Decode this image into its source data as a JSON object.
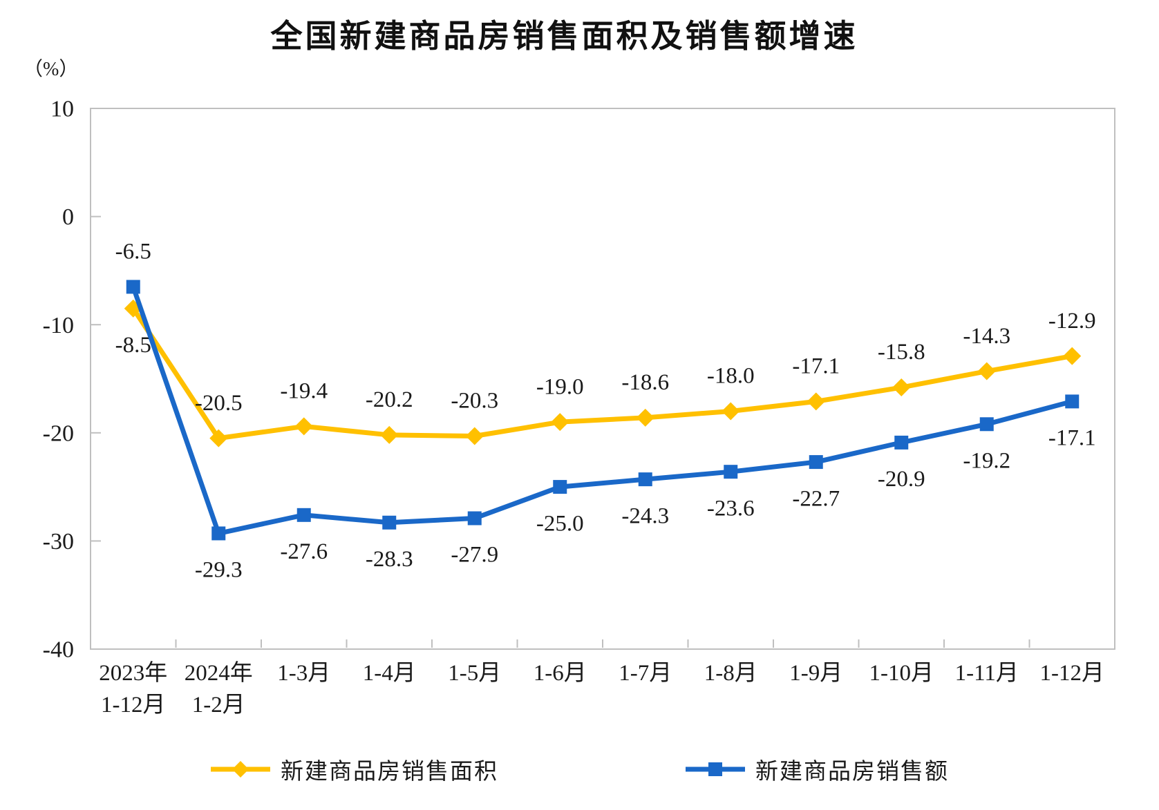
{
  "title": "全国新建商品房销售面积及销售额增速",
  "y_axis_unit": "（%）",
  "chart_data": {
    "type": "line",
    "title": "全国新建商品房销售面积及销售额增速",
    "xlabel": "",
    "ylabel": "（%）",
    "ylim": [
      -40,
      10
    ],
    "yticks": [
      10,
      0,
      -10,
      -20,
      -30,
      -40
    ],
    "grid": false,
    "legend_position": "bottom",
    "axis_color": "#BFBFBF",
    "label_color": "#1A1A1A",
    "categories": [
      "2023年\n1-12月",
      "2024年\n1-2月",
      "1-3月",
      "1-4月",
      "1-5月",
      "1-6月",
      "1-7月",
      "1-8月",
      "1-9月",
      "1-10月",
      "1-11月",
      "1-12月"
    ],
    "series": [
      {
        "name": "新建商品房销售面积",
        "color": "#FFC000",
        "marker": "diamond",
        "label_position": "above",
        "label_position_overrides": {
          "0": "below"
        },
        "values": [
          -8.5,
          -20.5,
          -19.4,
          -20.2,
          -20.3,
          -19.0,
          -18.6,
          -18.0,
          -17.1,
          -15.8,
          -14.3,
          -12.9
        ]
      },
      {
        "name": "新建商品房销售额",
        "color": "#1A68C8",
        "marker": "square",
        "label_position": "below",
        "label_position_overrides": {
          "0": "above"
        },
        "values": [
          -6.5,
          -29.3,
          -27.6,
          -28.3,
          -27.9,
          -25.0,
          -24.3,
          -23.6,
          -22.7,
          -20.9,
          -19.2,
          -17.1
        ]
      }
    ]
  }
}
